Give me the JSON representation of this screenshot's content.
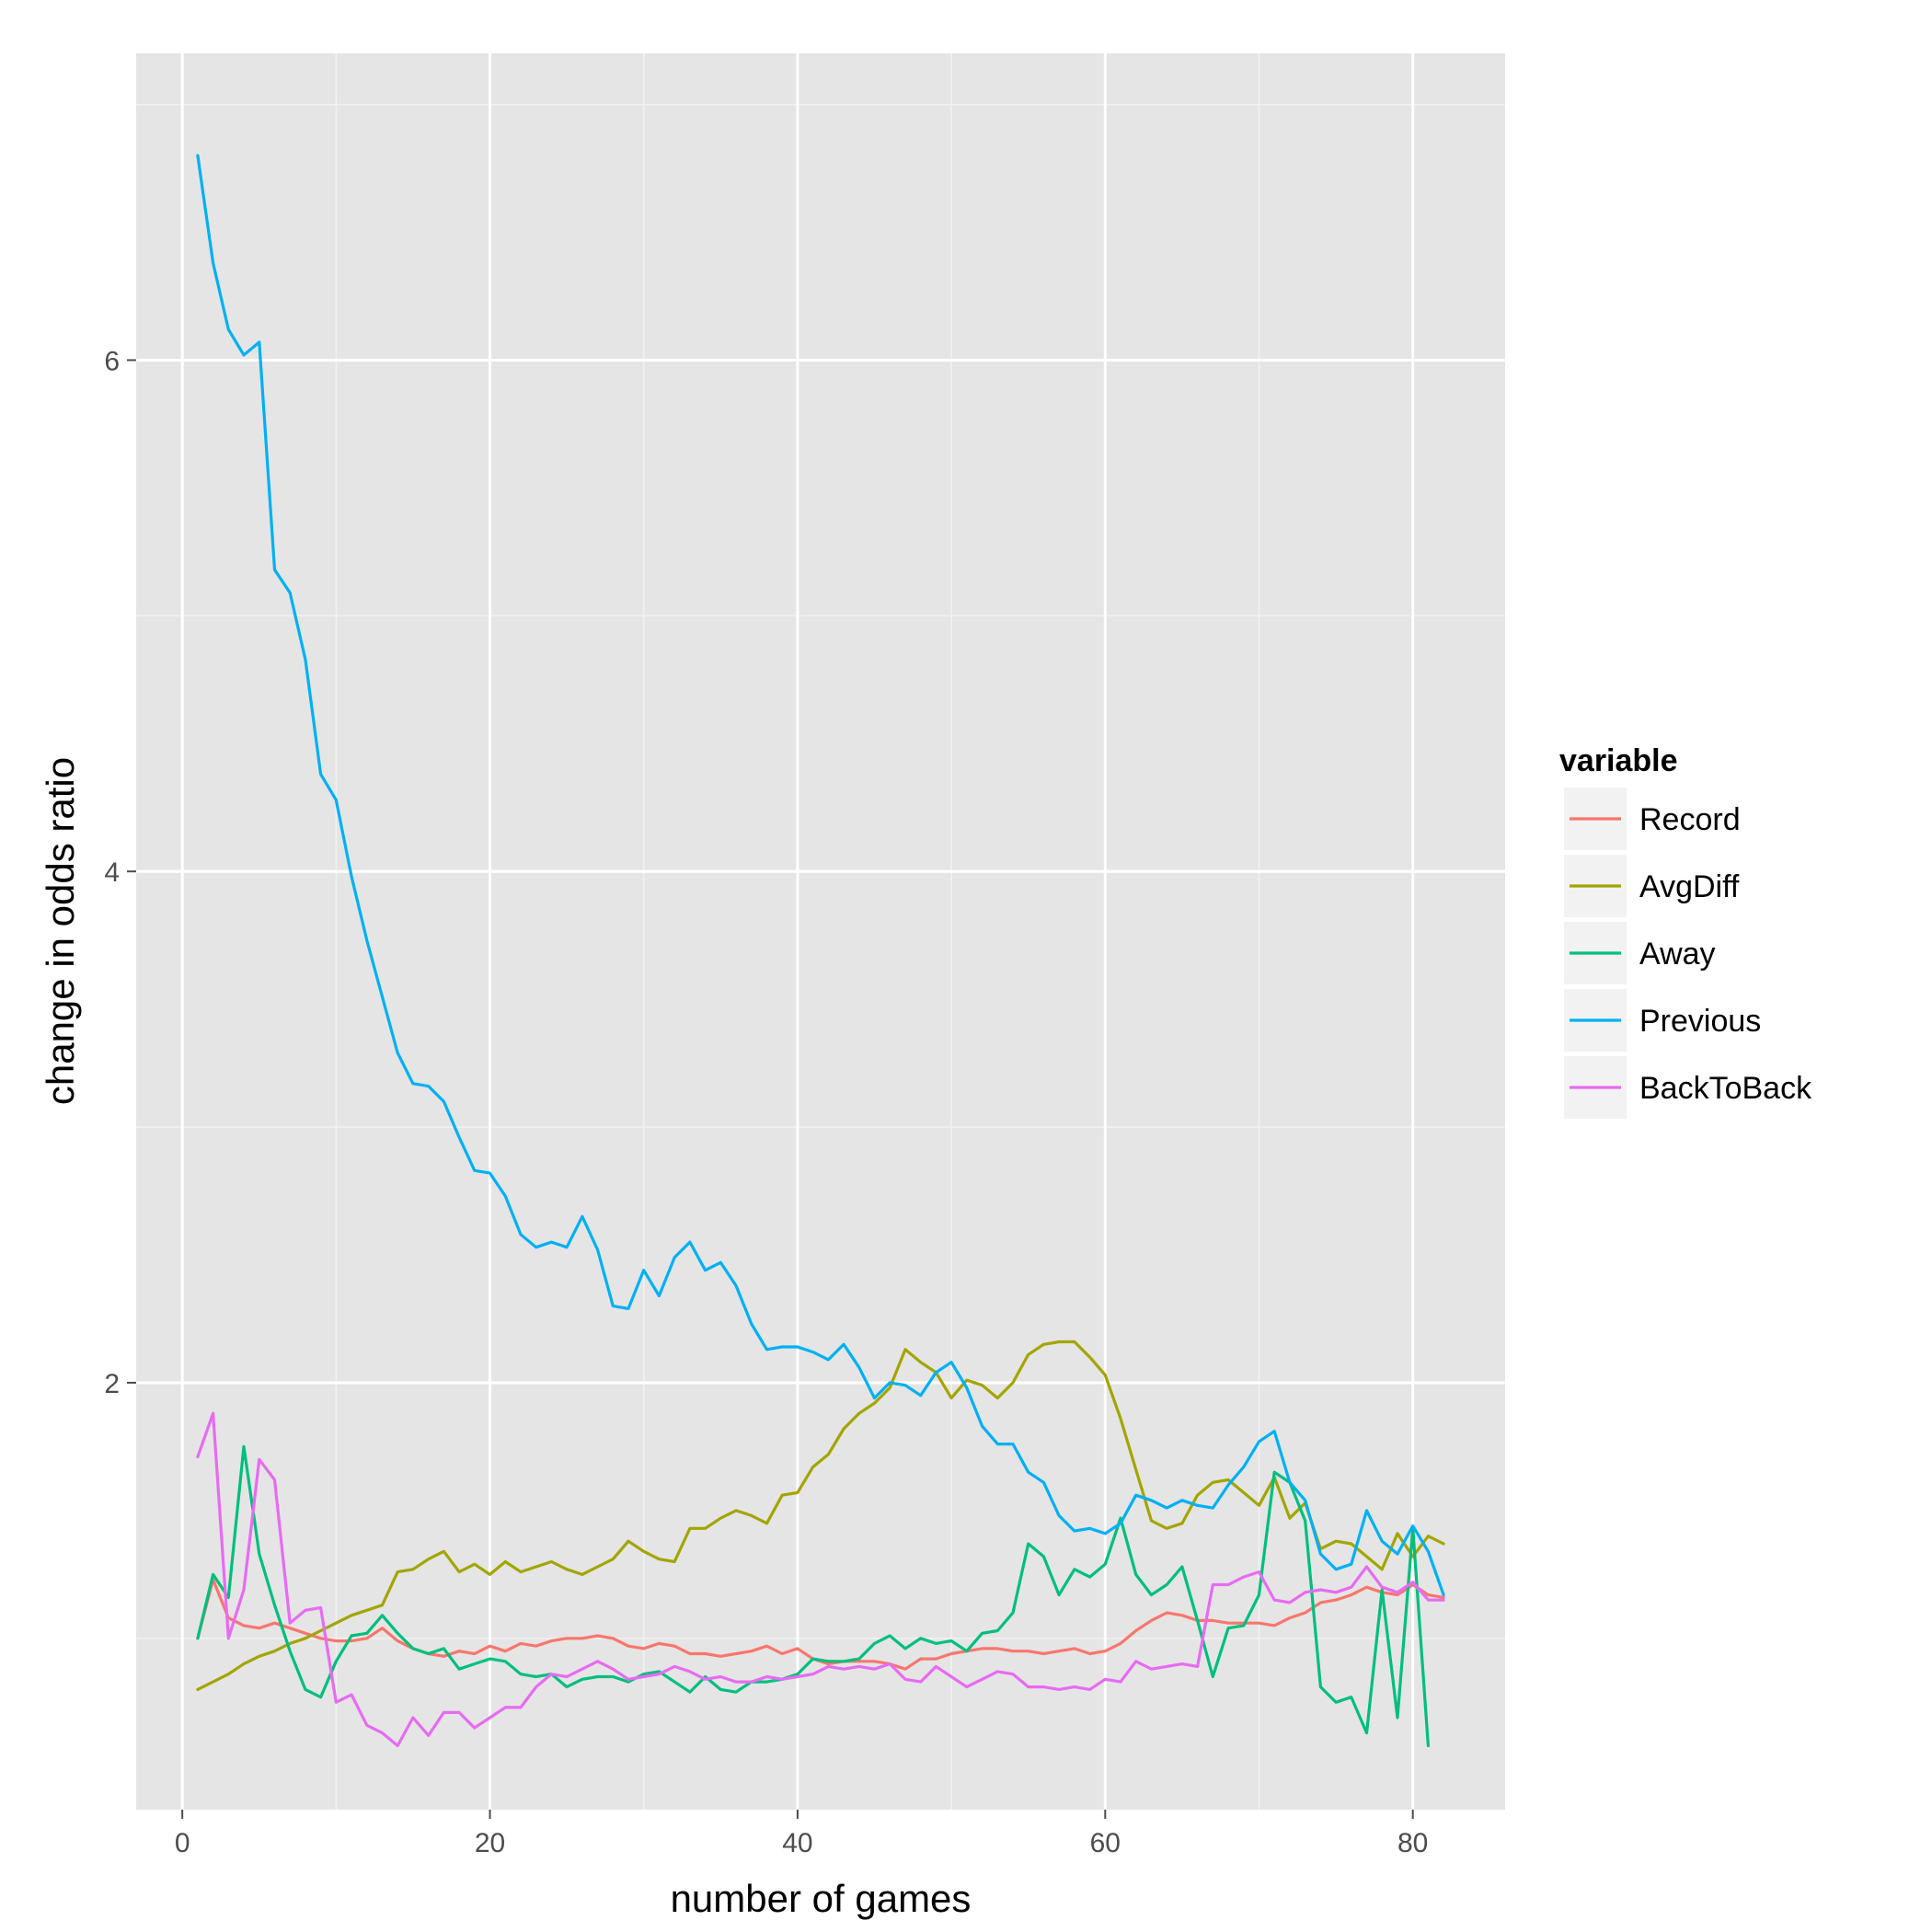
{
  "chart_data": {
    "type": "line",
    "xlabel": "number of games",
    "ylabel": "change in odds ratio",
    "xlim": [
      -3,
      86
    ],
    "ylim": [
      0.33,
      7.2
    ],
    "x_ticks": [
      0,
      20,
      40,
      60,
      80
    ],
    "y_ticks": [
      2,
      4,
      6
    ],
    "x_minor": [
      10,
      30,
      50,
      70
    ],
    "y_minor": [
      1,
      3,
      5,
      7
    ],
    "grid": true,
    "legend": {
      "title": "variable",
      "position": "right"
    },
    "x": [
      1,
      2,
      3,
      4,
      5,
      6,
      7,
      8,
      9,
      10,
      11,
      12,
      13,
      14,
      15,
      16,
      17,
      18,
      19,
      20,
      21,
      22,
      23,
      24,
      25,
      26,
      27,
      28,
      29,
      30,
      31,
      32,
      33,
      34,
      35,
      36,
      37,
      38,
      39,
      40,
      41,
      42,
      43,
      44,
      45,
      46,
      47,
      48,
      49,
      50,
      51,
      52,
      53,
      54,
      55,
      56,
      57,
      58,
      59,
      60,
      61,
      62,
      63,
      64,
      65,
      66,
      67,
      68,
      69,
      70,
      71,
      72,
      73,
      74,
      75,
      76,
      77,
      78,
      79,
      80,
      81,
      82
    ],
    "series": [
      {
        "name": "Record",
        "color": "#F8766D",
        "values": [
          1.0,
          1.23,
          1.08,
          1.05,
          1.04,
          1.06,
          1.04,
          1.02,
          1.0,
          0.99,
          0.99,
          1.0,
          1.04,
          0.99,
          0.96,
          0.94,
          0.93,
          0.95,
          0.94,
          0.97,
          0.95,
          0.98,
          0.97,
          0.99,
          1.0,
          1.0,
          1.01,
          1.0,
          0.97,
          0.96,
          0.98,
          0.97,
          0.94,
          0.94,
          0.93,
          0.94,
          0.95,
          0.97,
          0.94,
          0.96,
          0.92,
          0.9,
          0.91,
          0.91,
          0.91,
          0.9,
          0.88,
          0.92,
          0.92,
          0.94,
          0.95,
          0.96,
          0.96,
          0.95,
          0.95,
          0.94,
          0.95,
          0.96,
          0.94,
          0.95,
          0.98,
          1.03,
          1.07,
          1.1,
          1.09,
          1.07,
          1.07,
          1.06,
          1.06,
          1.06,
          1.05,
          1.08,
          1.1,
          1.14,
          1.15,
          1.17,
          1.2,
          1.18,
          1.17,
          1.21,
          1.17,
          1.16
        ]
      },
      {
        "name": "AvgDiff",
        "color": "#A3A500",
        "values": [
          0.8,
          0.83,
          0.86,
          0.9,
          0.93,
          0.95,
          0.98,
          1.0,
          1.03,
          1.06,
          1.09,
          1.11,
          1.13,
          1.26,
          1.27,
          1.31,
          1.34,
          1.26,
          1.29,
          1.25,
          1.3,
          1.26,
          1.28,
          1.3,
          1.27,
          1.25,
          1.28,
          1.31,
          1.38,
          1.34,
          1.31,
          1.3,
          1.43,
          1.43,
          1.47,
          1.5,
          1.48,
          1.45,
          1.56,
          1.57,
          1.67,
          1.72,
          1.82,
          1.88,
          1.92,
          1.98,
          2.13,
          2.08,
          2.04,
          1.94,
          2.01,
          1.99,
          1.94,
          2.0,
          2.11,
          2.15,
          2.16,
          2.16,
          2.1,
          2.03,
          1.86,
          1.66,
          1.46,
          1.43,
          1.45,
          1.56,
          1.61,
          1.62,
          1.57,
          1.52,
          1.63,
          1.47,
          1.53,
          1.35,
          1.38,
          1.37,
          1.32,
          1.27,
          1.41,
          1.32,
          1.4,
          1.37
        ]
      },
      {
        "name": "Away",
        "color": "#00BF7D",
        "values": [
          1.0,
          1.25,
          1.16,
          1.75,
          1.33,
          1.13,
          0.95,
          0.8,
          0.77,
          0.91,
          1.01,
          1.02,
          1.09,
          1.02,
          0.96,
          0.94,
          0.96,
          0.88,
          0.9,
          0.92,
          0.91,
          0.86,
          0.85,
          0.86,
          0.81,
          0.84,
          0.85,
          0.85,
          0.83,
          0.86,
          0.87,
          0.83,
          0.79,
          0.85,
          0.8,
          0.79,
          0.83,
          0.83,
          0.84,
          0.86,
          0.92,
          0.91,
          0.91,
          0.92,
          0.98,
          1.01,
          0.96,
          1.0,
          0.98,
          0.99,
          0.95,
          1.02,
          1.03,
          1.1,
          1.37,
          1.32,
          1.17,
          1.27,
          1.24,
          1.29,
          1.47,
          1.25,
          1.17,
          1.21,
          1.28,
          1.07,
          0.85,
          1.04,
          1.05,
          1.17,
          1.65,
          1.61,
          1.46,
          0.81,
          0.75,
          0.77,
          0.63,
          1.19,
          0.69,
          1.43,
          0.58,
          null
        ]
      },
      {
        "name": "Previous",
        "color": "#00B0F6",
        "values": [
          6.8,
          6.38,
          6.12,
          6.02,
          6.07,
          5.18,
          5.09,
          4.83,
          4.38,
          4.28,
          3.98,
          3.73,
          3.51,
          3.29,
          3.17,
          3.16,
          3.1,
          2.96,
          2.83,
          2.82,
          2.73,
          2.58,
          2.53,
          2.55,
          2.53,
          2.65,
          2.52,
          2.3,
          2.29,
          2.44,
          2.34,
          2.49,
          2.55,
          2.44,
          2.47,
          2.38,
          2.23,
          2.13,
          2.14,
          2.14,
          2.12,
          2.09,
          2.15,
          2.06,
          1.94,
          2.0,
          1.99,
          1.95,
          2.04,
          2.08,
          1.98,
          1.83,
          1.76,
          1.76,
          1.65,
          1.61,
          1.48,
          1.42,
          1.43,
          1.41,
          1.45,
          1.56,
          1.54,
          1.51,
          1.54,
          1.52,
          1.51,
          1.6,
          1.67,
          1.77,
          1.81,
          1.61,
          1.54,
          1.33,
          1.27,
          1.29,
          1.5,
          1.38,
          1.33,
          1.44,
          1.34,
          1.17
        ]
      },
      {
        "name": "BackToBack",
        "color": "#E76BF3",
        "values": [
          1.71,
          1.88,
          1.0,
          1.19,
          1.7,
          1.62,
          1.06,
          1.11,
          1.12,
          0.75,
          0.78,
          0.66,
          0.63,
          0.58,
          0.69,
          0.62,
          0.71,
          0.71,
          0.65,
          0.69,
          0.73,
          0.73,
          0.81,
          0.86,
          0.85,
          0.88,
          0.91,
          0.88,
          0.84,
          0.85,
          0.86,
          0.89,
          0.87,
          0.84,
          0.85,
          0.83,
          0.83,
          0.85,
          0.84,
          0.85,
          0.86,
          0.89,
          0.88,
          0.89,
          0.88,
          0.9,
          0.84,
          0.83,
          0.89,
          0.85,
          0.81,
          0.84,
          0.87,
          0.86,
          0.81,
          0.81,
          0.8,
          0.81,
          0.8,
          0.84,
          0.83,
          0.91,
          0.88,
          0.89,
          0.9,
          0.89,
          1.21,
          1.21,
          1.24,
          1.26,
          1.15,
          1.14,
          1.18,
          1.19,
          1.18,
          1.2,
          1.28,
          1.2,
          1.18,
          1.22,
          1.15,
          1.15
        ]
      }
    ]
  }
}
